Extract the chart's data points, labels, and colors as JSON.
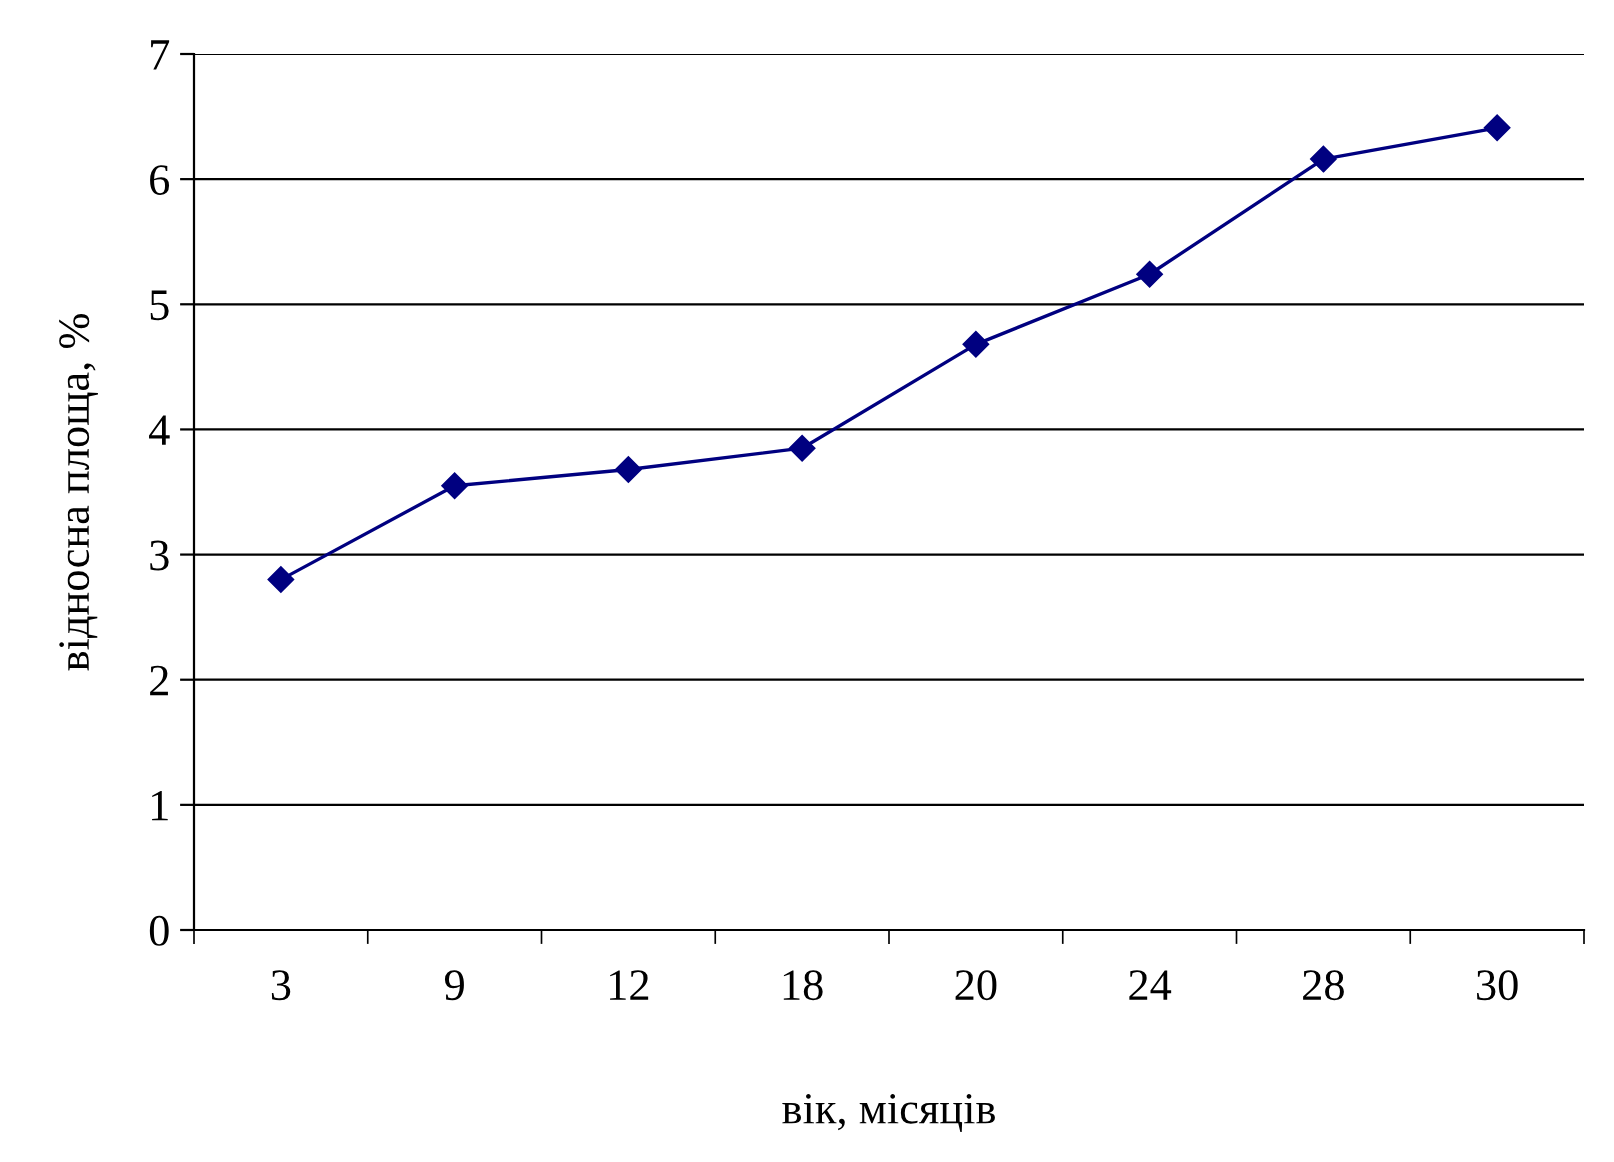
{
  "chart_data": {
    "type": "line",
    "xlabel": "вік, місяців",
    "ylabel": "відносна площа, %",
    "categories": [
      "3",
      "9",
      "12",
      "18",
      "20",
      "24",
      "28",
      "30"
    ],
    "series": [
      {
        "color": "#000080",
        "values": [
          2.8,
          3.55,
          3.68,
          3.85,
          4.68,
          5.24,
          6.16,
          6.41
        ]
      }
    ],
    "ylim": [
      0,
      7
    ],
    "yticks": [
      0,
      1,
      2,
      3,
      4,
      5,
      6,
      7
    ],
    "grid": "y",
    "legend": false,
    "marker": "diamond",
    "line_style": "solid"
  }
}
